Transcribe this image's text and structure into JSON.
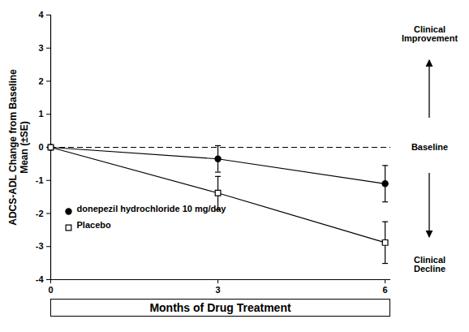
{
  "chart_data": {
    "type": "line",
    "x_label": "Months of Drug Treatment",
    "y_label": "ADCS-ADL Change from Baseline\nMean (±SE)",
    "x": [
      0,
      3,
      6
    ],
    "series": [
      {
        "name": "donepezil hydrochloride 10 mg/day",
        "color": "#000000",
        "marker": "circle",
        "values": [
          0,
          -0.35,
          -1.1
        ],
        "errors": [
          0,
          0.4,
          0.55
        ]
      },
      {
        "name": "Placebo",
        "color": "#000000",
        "marker": "open_square",
        "values": [
          0,
          -1.38,
          -2.88
        ],
        "errors": [
          0,
          0.5,
          0.63
        ]
      }
    ],
    "reference_line": 0,
    "annotations": [
      "Clinical\nImprovement",
      "Baseline",
      "Clinical\nDecline"
    ],
    "xlim": [
      0,
      6.1
    ],
    "xticks": [
      0,
      3,
      6
    ],
    "ylim": [
      -4,
      4
    ],
    "yticks": [
      -4,
      -3,
      -2,
      -1,
      0,
      1,
      2,
      3,
      4
    ],
    "legend": "lower left"
  }
}
